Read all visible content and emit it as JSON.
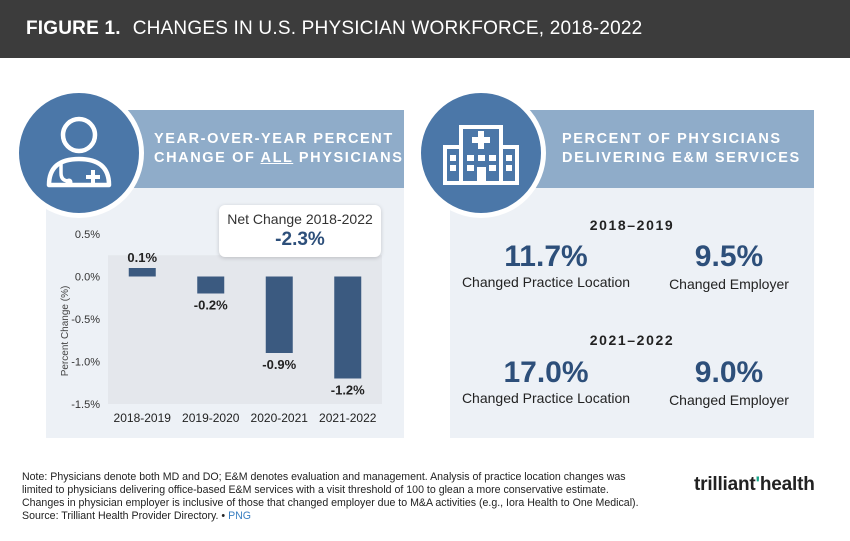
{
  "header": {
    "figure": "FIGURE 1.",
    "title": "CHANGES IN U.S. PHYSICIAN WORKFORCE, 2018-2022"
  },
  "left_panel": {
    "banner_line1": "YEAR-OVER-YEAR PERCENT",
    "banner_line2_pre": "CHANGE OF ",
    "banner_line2_under": "ALL",
    "banner_line2_post": " PHYSICIANS",
    "icon": "physician-icon",
    "net_change_label": "Net Change 2018-2022",
    "net_change_value": "-2.3%"
  },
  "chart_data": {
    "type": "bar",
    "categories": [
      "2018-2019",
      "2019-2020",
      "2020-2021",
      "2021-2022"
    ],
    "values": [
      0.1,
      -0.2,
      -0.9,
      -1.2
    ],
    "value_labels": [
      "0.1%",
      "-0.2%",
      "-0.9%",
      "-1.2%"
    ],
    "ylabel": "Percent Change (%)",
    "ylim": [
      -1.5,
      0.5
    ],
    "yticks": [
      0.5,
      0.0,
      -0.5,
      -1.0,
      -1.5
    ],
    "ytick_labels": [
      "0.5%",
      "0.0%",
      "-0.5%",
      "-1.0%",
      "-1.5%"
    ],
    "bar_color": "#3b5a80",
    "grid": false
  },
  "right_panel": {
    "banner_line1": "PERCENT OF PHYSICIANS",
    "banner_line2": "DELIVERING E&M SERVICES",
    "icon": "hospital-icon",
    "periods": [
      {
        "label": "2018–2019",
        "location_value": "11.7%",
        "location_label": "Changed Practice Location",
        "employer_value": "9.5%",
        "employer_label": "Changed Employer"
      },
      {
        "label": "2021–2022",
        "location_value": "17.0%",
        "location_label": "Changed Practice Location",
        "employer_value": "9.0%",
        "employer_label": "Changed Employer"
      }
    ]
  },
  "footer": {
    "note1": "Note: Physicians denote both MD and DO; E&M denotes evaluation and management. Analysis of practice location changes was",
    "note2": "limited to physicians delivering office-based E&M services with a visit threshold of 100 to glean a more conservative estimate.",
    "note3": "Changes in physician employer is inclusive of those that changed employer due to M&A activities (e.g., Iora Health to One Medical).",
    "source": "Source: Trilliant Health Provider Directory.",
    "separator": "•",
    "png_link": "PNG",
    "brand_part1": "trilliant",
    "brand_part2": "health"
  },
  "colors": {
    "header_bg": "#3c3c3c",
    "banner_bg": "#8facc9",
    "circle_bg": "#4b77a8",
    "panel_bg": "#edf1f6",
    "accent_text": "#2d4f7a",
    "brand_tick": "#17a589"
  }
}
